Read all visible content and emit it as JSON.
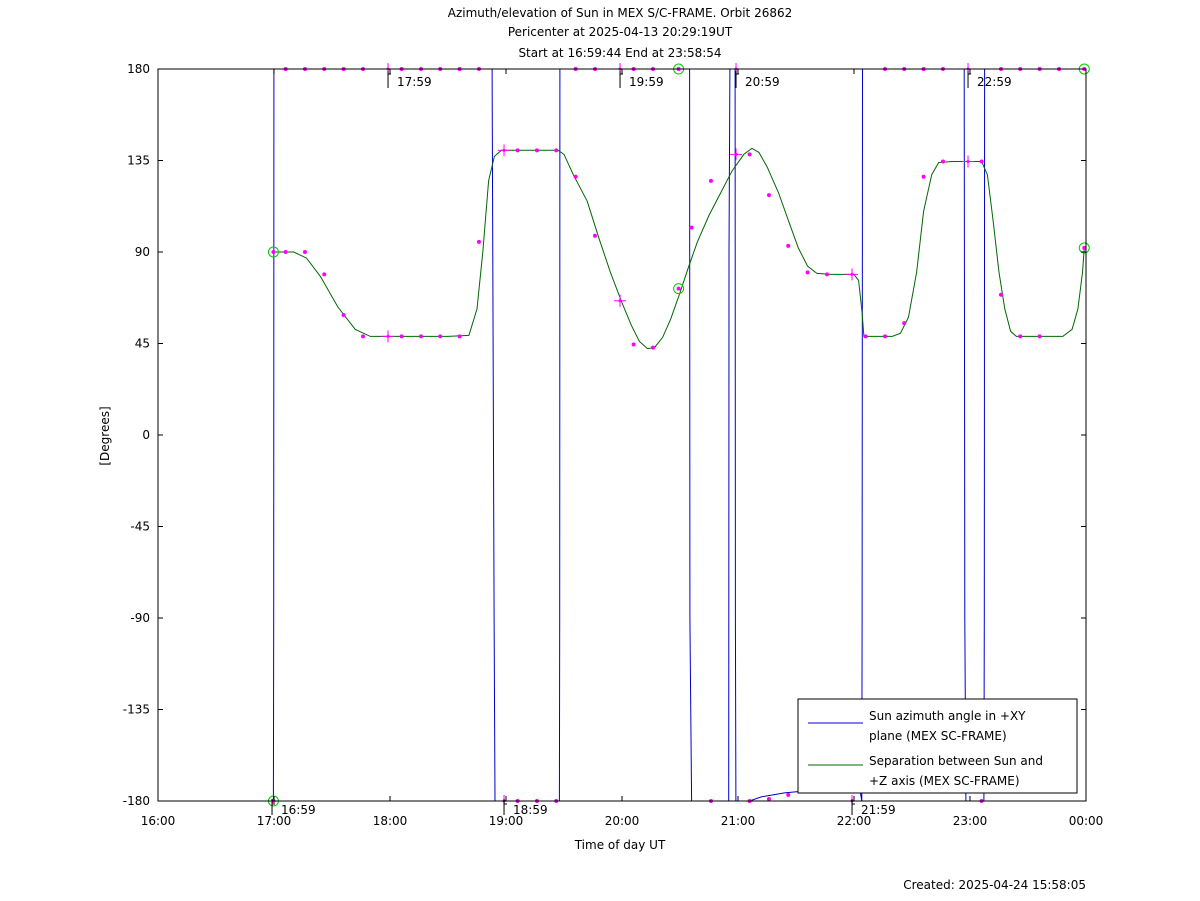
{
  "chart_data": {
    "type": "line",
    "title_lines": [
      "Azimuth/elevation of Sun in MEX S/C-FRAME.  Orbit 26862",
      "Pericenter at 2025-04-13 20:29:19UT",
      "Start at 16:59:44 End at 23:58:54"
    ],
    "xlabel": "Time of day UT",
    "ylabel": "[Degrees]",
    "xlim": [
      16.0,
      24.0
    ],
    "ylim": [
      -180,
      180
    ],
    "x_ticks": [
      16,
      17,
      18,
      19,
      20,
      21,
      22,
      23,
      24
    ],
    "x_tick_labels": [
      "16:00",
      "17:00",
      "18:00",
      "19:00",
      "20:00",
      "21:00",
      "22:00",
      "23:00",
      "00:00"
    ],
    "y_ticks": [
      180,
      135,
      90,
      45,
      0,
      -45,
      -90,
      -135,
      -180
    ],
    "y_tick_labels": [
      "180",
      "135",
      "90",
      "45",
      "0",
      "-45",
      "-90",
      "-135",
      "-180"
    ],
    "grid": false,
    "legend_position": "bottom-right",
    "hour_annotations": [
      {
        "x": 16.983,
        "y": -180,
        "label": "16:59",
        "place": "below"
      },
      {
        "x": 17.983,
        "y": 180,
        "label": "17:59",
        "place": "above"
      },
      {
        "x": 18.983,
        "y": -180,
        "label": "18:59",
        "place": "below"
      },
      {
        "x": 19.983,
        "y": 180,
        "label": "19:59",
        "place": "above"
      },
      {
        "x": 20.983,
        "y": 180,
        "label": "20:59",
        "place": "above"
      },
      {
        "x": 21.983,
        "y": -180,
        "label": "21:59",
        "place": "below"
      },
      {
        "x": 22.983,
        "y": 180,
        "label": "22:59",
        "place": "above"
      }
    ],
    "series": [
      {
        "name": "Sun azimuth angle in +XY plane (MEX SC-FRAME)",
        "legend_lines": [
          "Sun azimuth angle in +XY",
          "plane (MEX SC-FRAME)"
        ],
        "color": "#0000cc",
        "points": [
          [
            16.995,
            -180
          ],
          [
            16.997,
            -90
          ],
          [
            16.999,
            180
          ],
          [
            17.2,
            180
          ],
          [
            17.5,
            180
          ],
          [
            17.8,
            180
          ],
          [
            18.1,
            180
          ],
          [
            18.5,
            180
          ],
          [
            18.88,
            180
          ],
          [
            18.897,
            -90
          ],
          [
            18.905,
            -180
          ],
          [
            19.2,
            -180
          ],
          [
            19.46,
            -180
          ],
          [
            19.463,
            -90
          ],
          [
            19.465,
            180
          ],
          [
            19.8,
            180
          ],
          [
            20.2,
            180
          ],
          [
            20.583,
            180
          ],
          [
            20.585,
            -90
          ],
          [
            20.6,
            -180
          ],
          [
            20.9,
            -180
          ],
          [
            20.92,
            -180
          ],
          [
            20.922,
            90
          ],
          [
            20.93,
            180
          ],
          [
            20.975,
            180
          ],
          [
            20.978,
            -90
          ],
          [
            20.982,
            -180
          ],
          [
            21.1,
            -180
          ],
          [
            21.2,
            -178
          ],
          [
            21.4,
            -176
          ],
          [
            21.6,
            -175
          ],
          [
            21.8,
            -174
          ],
          [
            22.05,
            -174
          ],
          [
            22.067,
            -180
          ],
          [
            22.07,
            -90
          ],
          [
            22.073,
            180
          ],
          [
            22.5,
            180
          ],
          [
            22.9,
            180
          ],
          [
            22.95,
            180
          ],
          [
            22.955,
            -90
          ],
          [
            22.965,
            -180
          ],
          [
            23.12,
            -180
          ],
          [
            23.123,
            -90
          ],
          [
            23.126,
            180
          ],
          [
            23.6,
            180
          ],
          [
            23.985,
            180
          ]
        ],
        "markers": [
          {
            "x": 16.995,
            "y": -180,
            "kind": "circle"
          },
          {
            "x": 17.1,
            "y": 180,
            "kind": "dot"
          },
          {
            "x": 17.267,
            "y": 180,
            "kind": "dot"
          },
          {
            "x": 17.433,
            "y": 180,
            "kind": "dot"
          },
          {
            "x": 17.6,
            "y": 180,
            "kind": "dot"
          },
          {
            "x": 17.767,
            "y": 180,
            "kind": "dot"
          },
          {
            "x": 17.983,
            "y": 180,
            "kind": "cross"
          },
          {
            "x": 18.1,
            "y": 180,
            "kind": "dot"
          },
          {
            "x": 18.267,
            "y": 180,
            "kind": "dot"
          },
          {
            "x": 18.433,
            "y": 180,
            "kind": "dot"
          },
          {
            "x": 18.6,
            "y": 180,
            "kind": "dot"
          },
          {
            "x": 18.767,
            "y": 180,
            "kind": "dot"
          },
          {
            "x": 18.983,
            "y": -180,
            "kind": "cross"
          },
          {
            "x": 19.1,
            "y": -180,
            "kind": "dot"
          },
          {
            "x": 19.267,
            "y": -180,
            "kind": "dot"
          },
          {
            "x": 19.433,
            "y": -180,
            "kind": "dot"
          },
          {
            "x": 19.6,
            "y": 180,
            "kind": "dot"
          },
          {
            "x": 19.767,
            "y": 180,
            "kind": "dot"
          },
          {
            "x": 19.983,
            "y": 180,
            "kind": "cross"
          },
          {
            "x": 20.1,
            "y": 180,
            "kind": "dot"
          },
          {
            "x": 20.267,
            "y": 180,
            "kind": "dot"
          },
          {
            "x": 20.488,
            "y": 180,
            "kind": "circle"
          },
          {
            "x": 20.767,
            "y": -180,
            "kind": "dot"
          },
          {
            "x": 20.983,
            "y": 180,
            "kind": "cross"
          },
          {
            "x": 21.1,
            "y": -180,
            "kind": "dot"
          },
          {
            "x": 21.267,
            "y": -179,
            "kind": "dot"
          },
          {
            "x": 21.433,
            "y": -177,
            "kind": "dot"
          },
          {
            "x": 21.6,
            "y": -175,
            "kind": "dot"
          },
          {
            "x": 21.767,
            "y": -174,
            "kind": "dot"
          },
          {
            "x": 21.983,
            "y": -180,
            "kind": "cross"
          },
          {
            "x": 22.267,
            "y": 180,
            "kind": "dot"
          },
          {
            "x": 22.433,
            "y": 180,
            "kind": "dot"
          },
          {
            "x": 22.6,
            "y": 180,
            "kind": "dot"
          },
          {
            "x": 22.767,
            "y": 180,
            "kind": "dot"
          },
          {
            "x": 22.983,
            "y": 180,
            "kind": "cross"
          },
          {
            "x": 23.1,
            "y": -180,
            "kind": "dot"
          },
          {
            "x": 23.267,
            "y": 180,
            "kind": "dot"
          },
          {
            "x": 23.433,
            "y": 180,
            "kind": "dot"
          },
          {
            "x": 23.6,
            "y": 180,
            "kind": "dot"
          },
          {
            "x": 23.767,
            "y": 180,
            "kind": "dot"
          },
          {
            "x": 23.985,
            "y": 180,
            "kind": "circle"
          }
        ]
      },
      {
        "name": "Separation between Sun and +Z axis (MEX SC-FRAME)",
        "legend_lines": [
          "Separation between Sun and",
          "+Z axis (MEX SC-FRAME)"
        ],
        "color": "#006600",
        "points": [
          [
            16.995,
            90
          ],
          [
            17.17,
            90
          ],
          [
            17.28,
            87
          ],
          [
            17.4,
            78
          ],
          [
            17.55,
            63
          ],
          [
            17.7,
            52
          ],
          [
            17.83,
            48.5
          ],
          [
            17.95,
            48.5
          ],
          [
            18.2,
            48.5
          ],
          [
            18.5,
            48.5
          ],
          [
            18.68,
            49
          ],
          [
            18.75,
            62
          ],
          [
            18.8,
            90
          ],
          [
            18.85,
            125
          ],
          [
            18.9,
            137
          ],
          [
            18.96,
            140
          ],
          [
            19.1,
            140
          ],
          [
            19.35,
            140
          ],
          [
            19.45,
            140
          ],
          [
            19.5,
            138
          ],
          [
            19.58,
            128
          ],
          [
            19.7,
            115
          ],
          [
            19.8,
            97
          ],
          [
            19.9,
            80
          ],
          [
            20.0,
            65
          ],
          [
            20.08,
            54
          ],
          [
            20.15,
            46
          ],
          [
            20.22,
            42.5
          ],
          [
            20.28,
            43
          ],
          [
            20.35,
            48
          ],
          [
            20.42,
            57
          ],
          [
            20.5,
            70
          ],
          [
            20.57,
            82
          ],
          [
            20.65,
            95
          ],
          [
            20.75,
            108
          ],
          [
            20.85,
            119
          ],
          [
            20.95,
            130
          ],
          [
            21.05,
            138
          ],
          [
            21.12,
            141
          ],
          [
            21.18,
            139
          ],
          [
            21.25,
            132
          ],
          [
            21.35,
            119
          ],
          [
            21.45,
            103
          ],
          [
            21.52,
            92
          ],
          [
            21.6,
            83
          ],
          [
            21.68,
            79.5
          ],
          [
            21.8,
            79
          ],
          [
            22.0,
            79
          ],
          [
            22.04,
            76
          ],
          [
            22.07,
            60
          ],
          [
            22.085,
            48.5
          ],
          [
            22.2,
            48.5
          ],
          [
            22.33,
            48.5
          ],
          [
            22.4,
            50
          ],
          [
            22.47,
            58
          ],
          [
            22.54,
            80
          ],
          [
            22.6,
            110
          ],
          [
            22.67,
            128
          ],
          [
            22.73,
            134
          ],
          [
            22.85,
            134.5
          ],
          [
            23.1,
            134.5
          ],
          [
            23.15,
            128
          ],
          [
            23.2,
            105
          ],
          [
            23.25,
            80
          ],
          [
            23.3,
            62
          ],
          [
            23.35,
            51
          ],
          [
            23.4,
            48.5
          ],
          [
            23.5,
            48.5
          ],
          [
            23.8,
            48.5
          ],
          [
            23.88,
            52
          ],
          [
            23.93,
            62
          ],
          [
            23.97,
            80
          ],
          [
            23.985,
            92
          ]
        ],
        "markers": [
          {
            "x": 16.995,
            "y": 90,
            "kind": "circle"
          },
          {
            "x": 17.1,
            "y": 90,
            "kind": "dot"
          },
          {
            "x": 17.267,
            "y": 90,
            "kind": "dot"
          },
          {
            "x": 17.433,
            "y": 79,
            "kind": "dot"
          },
          {
            "x": 17.6,
            "y": 59,
            "kind": "dot"
          },
          {
            "x": 17.767,
            "y": 48.5,
            "kind": "dot"
          },
          {
            "x": 17.983,
            "y": 48.5,
            "kind": "cross"
          },
          {
            "x": 18.1,
            "y": 48.5,
            "kind": "dot"
          },
          {
            "x": 18.267,
            "y": 48.5,
            "kind": "dot"
          },
          {
            "x": 18.433,
            "y": 48.5,
            "kind": "dot"
          },
          {
            "x": 18.6,
            "y": 48.5,
            "kind": "dot"
          },
          {
            "x": 18.767,
            "y": 95,
            "kind": "dot"
          },
          {
            "x": 18.983,
            "y": 140,
            "kind": "cross"
          },
          {
            "x": 19.1,
            "y": 140,
            "kind": "dot"
          },
          {
            "x": 19.267,
            "y": 140,
            "kind": "dot"
          },
          {
            "x": 19.433,
            "y": 140,
            "kind": "dot"
          },
          {
            "x": 19.6,
            "y": 127,
            "kind": "dot"
          },
          {
            "x": 19.767,
            "y": 98,
            "kind": "dot"
          },
          {
            "x": 19.983,
            "y": 66,
            "kind": "cross"
          },
          {
            "x": 20.1,
            "y": 44.5,
            "kind": "dot"
          },
          {
            "x": 20.267,
            "y": 43,
            "kind": "dot"
          },
          {
            "x": 20.488,
            "y": 72,
            "kind": "circle"
          },
          {
            "x": 20.6,
            "y": 102,
            "kind": "dot"
          },
          {
            "x": 20.767,
            "y": 125,
            "kind": "dot"
          },
          {
            "x": 20.983,
            "y": 138,
            "kind": "cross"
          },
          {
            "x": 21.1,
            "y": 138,
            "kind": "dot"
          },
          {
            "x": 21.267,
            "y": 118,
            "kind": "dot"
          },
          {
            "x": 21.433,
            "y": 93,
            "kind": "dot"
          },
          {
            "x": 21.6,
            "y": 80,
            "kind": "dot"
          },
          {
            "x": 21.767,
            "y": 79,
            "kind": "dot"
          },
          {
            "x": 21.983,
            "y": 79,
            "kind": "cross"
          },
          {
            "x": 22.1,
            "y": 48.5,
            "kind": "dot"
          },
          {
            "x": 22.267,
            "y": 48.5,
            "kind": "dot"
          },
          {
            "x": 22.433,
            "y": 55,
            "kind": "dot"
          },
          {
            "x": 22.6,
            "y": 127,
            "kind": "dot"
          },
          {
            "x": 22.767,
            "y": 134.5,
            "kind": "dot"
          },
          {
            "x": 22.983,
            "y": 134.5,
            "kind": "cross"
          },
          {
            "x": 23.1,
            "y": 134.5,
            "kind": "dot"
          },
          {
            "x": 23.267,
            "y": 69,
            "kind": "dot"
          },
          {
            "x": 23.433,
            "y": 48.5,
            "kind": "dot"
          },
          {
            "x": 23.6,
            "y": 48.5,
            "kind": "dot"
          },
          {
            "x": 23.985,
            "y": 92,
            "kind": "circle"
          }
        ]
      }
    ],
    "created_text": "Created: 2025-04-24 15:58:05"
  },
  "colors": {
    "axis": "#000000",
    "marker": "#ff00ff",
    "circle_marker": "#00cc00"
  }
}
